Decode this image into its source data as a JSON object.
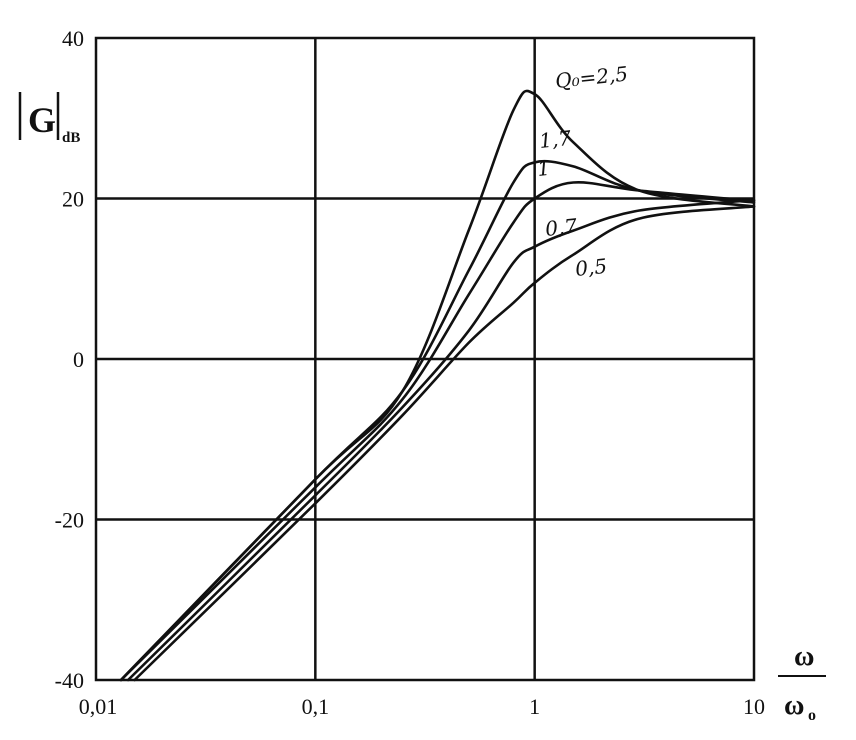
{
  "chart_data": {
    "type": "line",
    "x_scale": "log",
    "xlim": [
      0.01,
      10
    ],
    "ylim": [
      -40,
      40
    ],
    "grid": true,
    "ylabel": {
      "main": "|G|",
      "sub": "dB"
    },
    "xlabel": {
      "numerator": "ω",
      "denominator": "ω",
      "denominator_sub": "o"
    },
    "x_ticks": [
      {
        "value": 0.01,
        "label": "0,01"
      },
      {
        "value": 0.1,
        "label": "0,1"
      },
      {
        "value": 1,
        "label": "1"
      },
      {
        "value": 10,
        "label": "10"
      }
    ],
    "y_ticks": [
      {
        "value": 40,
        "label": "40"
      },
      {
        "value": 20,
        "label": "20"
      },
      {
        "value": 0,
        "label": "0"
      },
      {
        "value": -20,
        "label": "-20"
      },
      {
        "value": -40,
        "label": "-40"
      }
    ],
    "series": [
      {
        "name": "Q0=2,5",
        "label_text": "Q₀=2,5",
        "Q": 2.5,
        "x": [
          0.013,
          0.1,
          0.25,
          0.5,
          0.8,
          1.0,
          1.5,
          3,
          10
        ],
        "y": [
          -40,
          -15,
          -4,
          16,
          31,
          33,
          27,
          21,
          19
        ]
      },
      {
        "name": "1,7",
        "label_text": "1,7",
        "Q": 1.7,
        "x": [
          0.013,
          0.1,
          0.25,
          0.5,
          0.8,
          1.0,
          1.5,
          3,
          10
        ],
        "y": [
          -40,
          -15,
          -4,
          11,
          22,
          24.5,
          24,
          21,
          19.5
        ]
      },
      {
        "name": "1",
        "label_text": "1",
        "Q": 1,
        "x": [
          0.013,
          0.1,
          0.25,
          0.5,
          0.8,
          1.0,
          1.5,
          3,
          10
        ],
        "y": [
          -40,
          -16,
          -5,
          8,
          17,
          20,
          22,
          21,
          19.7
        ]
      },
      {
        "name": "0,7",
        "label_text": "0,7",
        "Q": 0.7,
        "x": [
          0.014,
          0.1,
          0.25,
          0.5,
          0.8,
          1.0,
          1.5,
          3,
          10
        ],
        "y": [
          -40,
          -17,
          -6,
          3.5,
          12,
          14,
          16,
          18.5,
          19.8
        ]
      },
      {
        "name": "0,5",
        "label_text": "0,5",
        "Q": 0.5,
        "x": [
          0.015,
          0.1,
          0.25,
          0.5,
          0.8,
          1.0,
          1.5,
          3,
          10
        ],
        "y": [
          -40,
          -18,
          -7,
          2,
          7,
          9.5,
          13,
          17.5,
          19
        ]
      }
    ]
  }
}
